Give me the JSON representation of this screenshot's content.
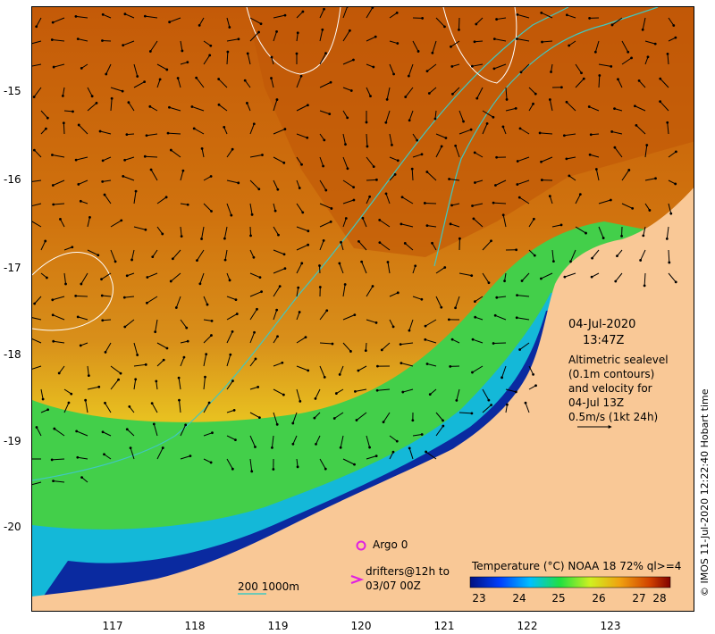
{
  "map": {
    "title_date": "04-Jul-2020",
    "title_time": "13:47Z",
    "altimetry_lines": [
      "Altimetric sealevel",
      "(0.1m contours)",
      "and velocity for",
      "04-Jul 13Z",
      "0.5m/s (1kt 24h)"
    ],
    "latitude_labels": [
      "-15",
      "-16",
      "-17",
      "-18",
      "-19",
      "-20"
    ],
    "longitude_labels": [
      "117",
      "118",
      "119",
      "120",
      "121",
      "122",
      "123"
    ],
    "legend": {
      "argo_label": "Argo 0",
      "drifters_line1": "drifters@12h to",
      "drifters_line2": "03/07 00Z",
      "depth_contours": "200  1000m",
      "colorbar_title": "Temperature (°C) NOAA 18 72% ql>=4",
      "colorbar_ticks": [
        "23",
        "24",
        "25",
        "26",
        "27",
        "28"
      ]
    },
    "credit": "© IMOS 11-Jul-2020 12:22:40 Hobart time",
    "colors": {
      "land": "#f9c896",
      "warm_sst": "#d66a0e",
      "cool_sst": "#3fd14a",
      "coastal_blue": "#0a2aa0",
      "contour": "#40c8c0",
      "argo": "#e020e0"
    }
  }
}
